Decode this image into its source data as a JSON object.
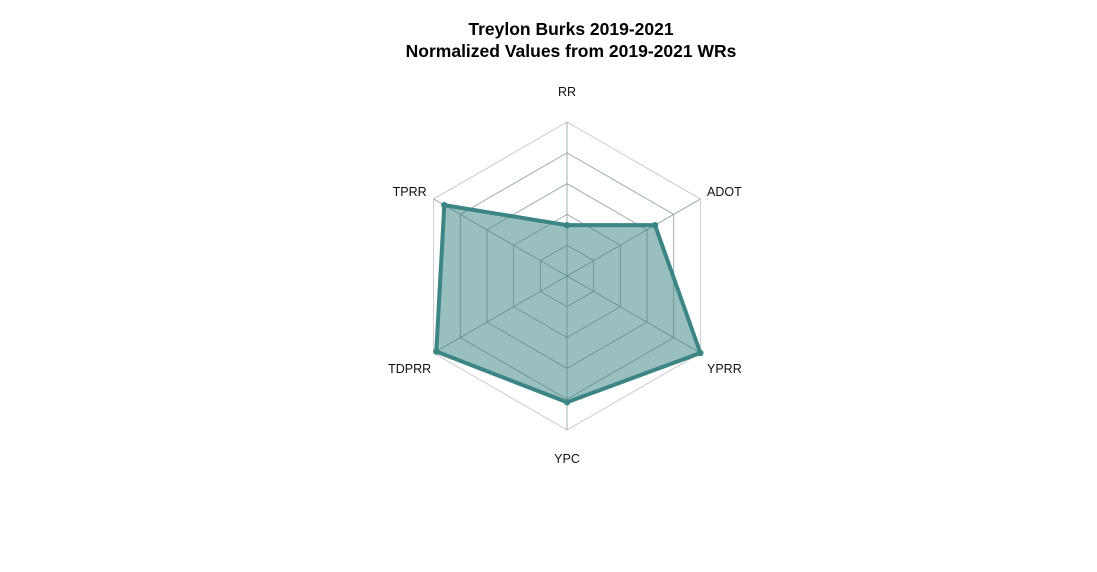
{
  "chart_data": {
    "type": "radar",
    "title": "Treylon Burks 2019-2021",
    "subtitle": "Normalized Values from 2019-2021 WRs",
    "axes": [
      "RR",
      "ADOT",
      "YPRR",
      "YPC",
      "TDPRR",
      "TPRR"
    ],
    "series": [
      {
        "values": [
          0.33,
          0.66,
          1.0,
          0.82,
          0.98,
          0.92
        ]
      }
    ],
    "range": [
      0,
      1
    ],
    "grid_rings": 5,
    "legend": "none",
    "colors": {
      "line": "#3d8585",
      "fill": "#3d8585",
      "fill_opacity": 0.52,
      "ring": "#c0c0c0",
      "inner_ring": "#8c9c9c"
    }
  }
}
